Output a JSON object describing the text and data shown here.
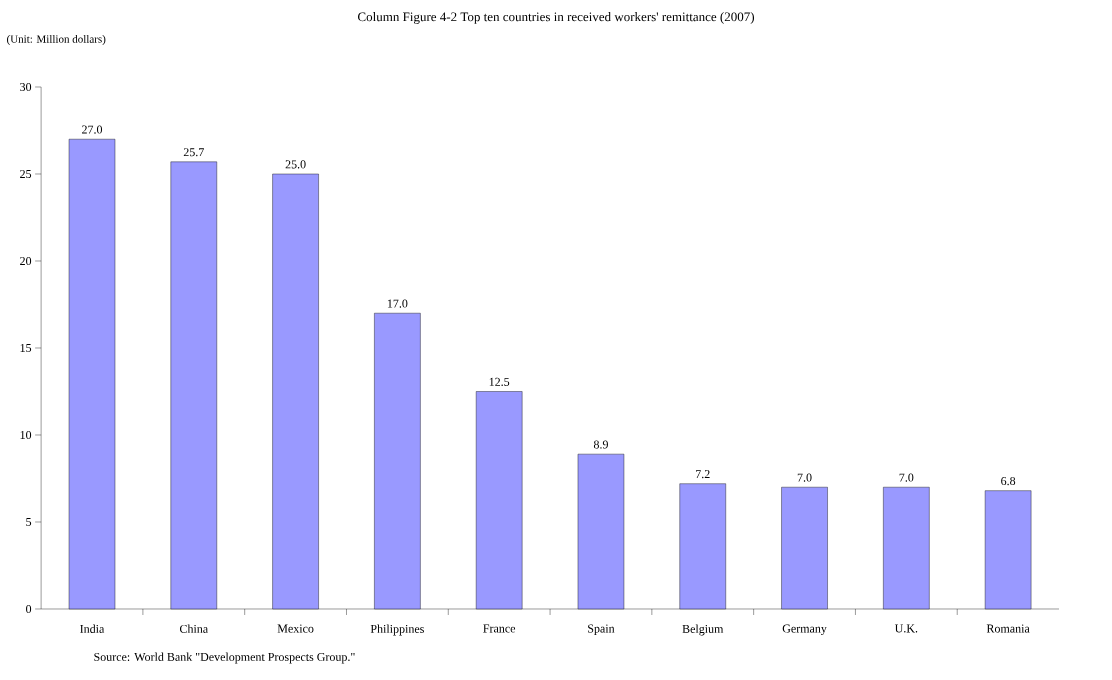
{
  "chart_data": {
    "type": "bar",
    "title": "Column Figure 4-2 Top ten countries in received workers' remittance (2007)",
    "ylabel": "(Unit: Million dollars)",
    "annotations": [
      "Source: World Bank \"Development Prospects Group.\""
    ],
    "categories": [
      "India",
      "China",
      "Mexico",
      "Philippines",
      "France",
      "Spain",
      "Belgium",
      "Germany",
      "U.K.",
      "Romania"
    ],
    "values": [
      27.0,
      25.7,
      25.0,
      17.0,
      12.5,
      8.9,
      7.2,
      7.0,
      7.0,
      6.8
    ],
    "color": "#9999ff",
    "ylim": [
      0,
      30
    ],
    "yticks": [
      0,
      5,
      10,
      15,
      20,
      25,
      30
    ],
    "value_labels": [
      "27.0",
      "25.7",
      "25.0",
      "17.0",
      "12.5",
      "8.9",
      "7.2",
      "7.0",
      "7.0",
      "6.8"
    ],
    "grid": false
  }
}
